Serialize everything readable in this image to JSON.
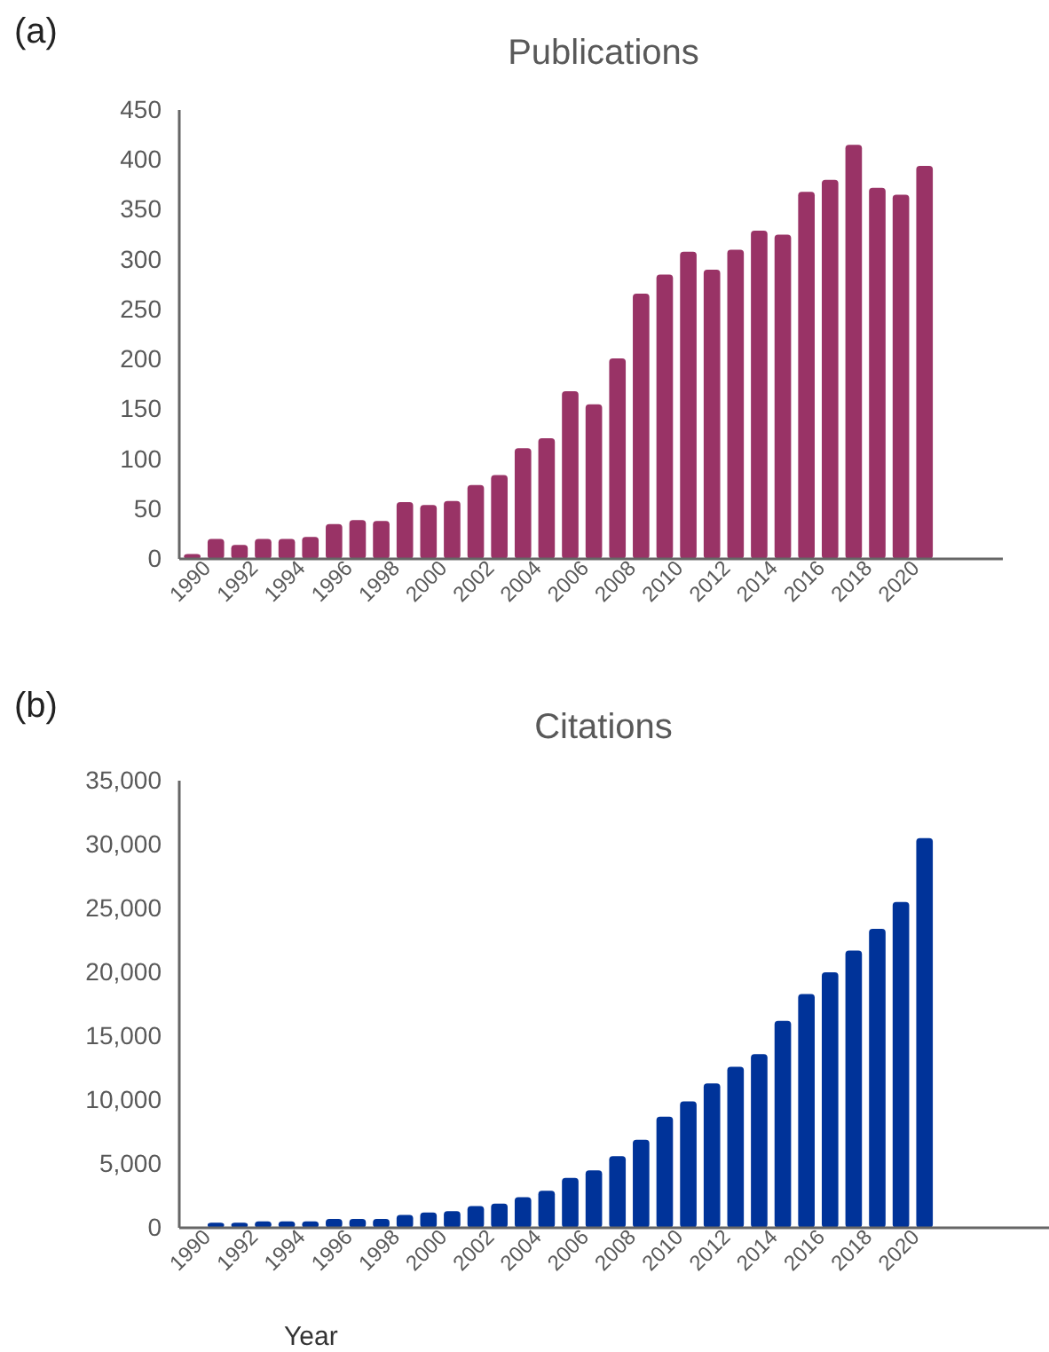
{
  "chart_data": [
    {
      "type": "bar",
      "title": "Publications",
      "annotations": [
        "(a)"
      ],
      "categories": [
        "1990",
        null,
        "1992",
        null,
        "1994",
        null,
        "1996",
        null,
        "1998",
        null,
        "2000",
        null,
        "2002",
        null,
        "2004",
        null,
        "2006",
        null,
        "2008",
        null,
        "2010",
        null,
        "2012",
        null,
        "2014",
        null,
        "2016",
        null,
        "2018",
        null,
        "2020",
        null
      ],
      "values": [
        5,
        20,
        14,
        20,
        20,
        22,
        35,
        39,
        38,
        57,
        54,
        58,
        74,
        84,
        111,
        121,
        168,
        155,
        201,
        266,
        285,
        308,
        290,
        310,
        329,
        325,
        368,
        380,
        415,
        372,
        365,
        394
      ],
      "color": "#993366",
      "ylim": [
        0,
        450
      ],
      "yticks": [
        0,
        50,
        100,
        150,
        200,
        250,
        300,
        350,
        400,
        450
      ],
      "grid": false
    },
    {
      "type": "bar",
      "title": "Citations",
      "annotations": [
        "(b)"
      ],
      "xlabel": "Year",
      "categories": [
        "1990",
        null,
        "1992",
        null,
        "1994",
        null,
        "1996",
        null,
        "1998",
        null,
        "2000",
        null,
        "2002",
        null,
        "2004",
        null,
        "2006",
        null,
        "2008",
        null,
        "2010",
        null,
        "2012",
        null,
        "2014",
        null,
        "2016",
        null,
        "2018",
        null,
        "2020",
        null
      ],
      "values": [
        null,
        400,
        400,
        500,
        500,
        500,
        700,
        700,
        700,
        1000,
        1200,
        1300,
        1700,
        1900,
        2400,
        2900,
        3900,
        4500,
        5600,
        6900,
        8700,
        9900,
        11300,
        12600,
        13600,
        16200,
        18300,
        20000,
        21700,
        23400,
        25500,
        30500
      ],
      "color": "#003399",
      "ylim": [
        0,
        35000
      ],
      "yticks": [
        {
          "value": 0,
          "label": "0"
        },
        {
          "value": 5000,
          "label": "5,000"
        },
        {
          "value": 10000,
          "label": "10,000"
        },
        {
          "value": 15000,
          "label": "15,000"
        },
        {
          "value": 20000,
          "label": "20,000"
        },
        {
          "value": 25000,
          "label": "25,000"
        },
        {
          "value": 30000,
          "label": "30,000"
        },
        {
          "value": 35000,
          "label": "35,000"
        }
      ],
      "grid": false
    }
  ]
}
